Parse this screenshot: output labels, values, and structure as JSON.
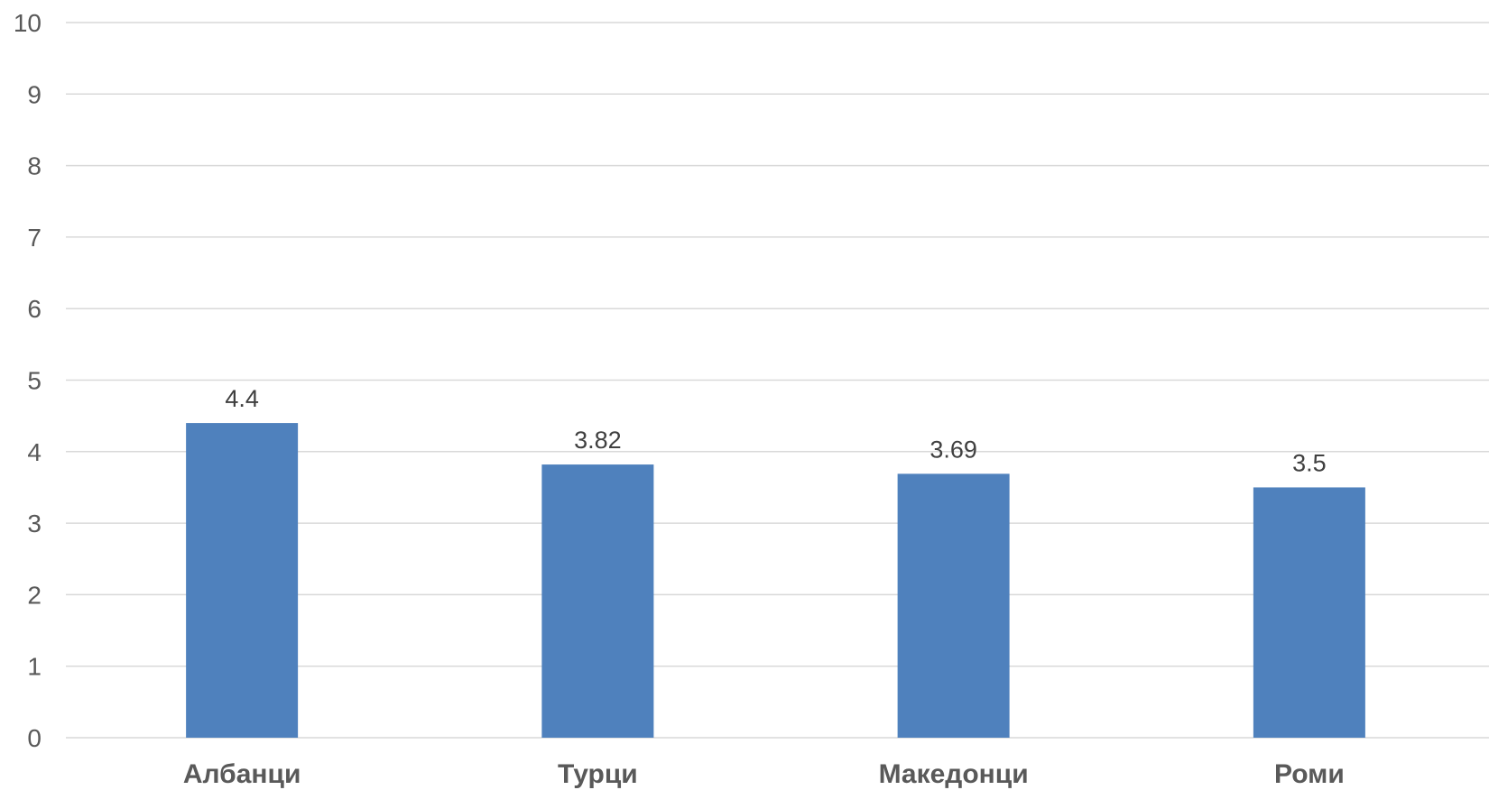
{
  "chart_data": {
    "type": "bar",
    "categories": [
      "Албанци",
      "Турци",
      "Македонци",
      "Роми"
    ],
    "values": [
      4.4,
      3.82,
      3.69,
      3.5
    ],
    "data_labels": [
      "4.4",
      "3.82",
      "3.69",
      "3.5"
    ],
    "title": "",
    "xlabel": "",
    "ylabel": "",
    "ylim": [
      0,
      10
    ],
    "yticks": [
      "0",
      "1",
      "2",
      "3",
      "4",
      "5",
      "6",
      "7",
      "8",
      "9",
      "10"
    ],
    "grid": true,
    "legend": "none",
    "bar_color": "#4f81bd"
  }
}
